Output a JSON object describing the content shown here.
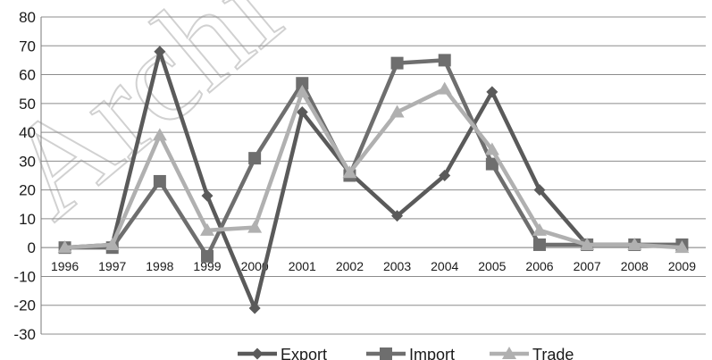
{
  "chart_data": {
    "type": "line",
    "title": "",
    "xlabel": "",
    "ylabel": "",
    "ylim": [
      -30,
      80
    ],
    "yticks": [
      80,
      70,
      60,
      50,
      40,
      30,
      20,
      10,
      0,
      -10,
      -20,
      -30
    ],
    "categories": [
      "1996",
      "1997",
      "1998",
      "1999",
      "2000",
      "2001",
      "2002",
      "2003",
      "2004",
      "2005",
      "2006",
      "2007",
      "2008",
      "2009"
    ],
    "grid": "horizontal",
    "legend_position": "bottom",
    "series": [
      {
        "name": "Export",
        "marker": "diamond",
        "color": "#5a5a5a",
        "values": [
          0,
          1,
          68,
          18,
          -21,
          47,
          26,
          11,
          25,
          54,
          20,
          1,
          1,
          1
        ]
      },
      {
        "name": "Import",
        "marker": "square",
        "color": "#6e6e6e",
        "values": [
          0,
          0,
          23,
          -3,
          31,
          57,
          25,
          64,
          65,
          29,
          1,
          1,
          1,
          1
        ]
      },
      {
        "name": "Trade",
        "marker": "triangle",
        "color": "#b0b0b0",
        "values": [
          0,
          1,
          39,
          6,
          7,
          54,
          26,
          47,
          55,
          34,
          6,
          1,
          1,
          0
        ]
      }
    ]
  },
  "watermark_text": "Archi"
}
